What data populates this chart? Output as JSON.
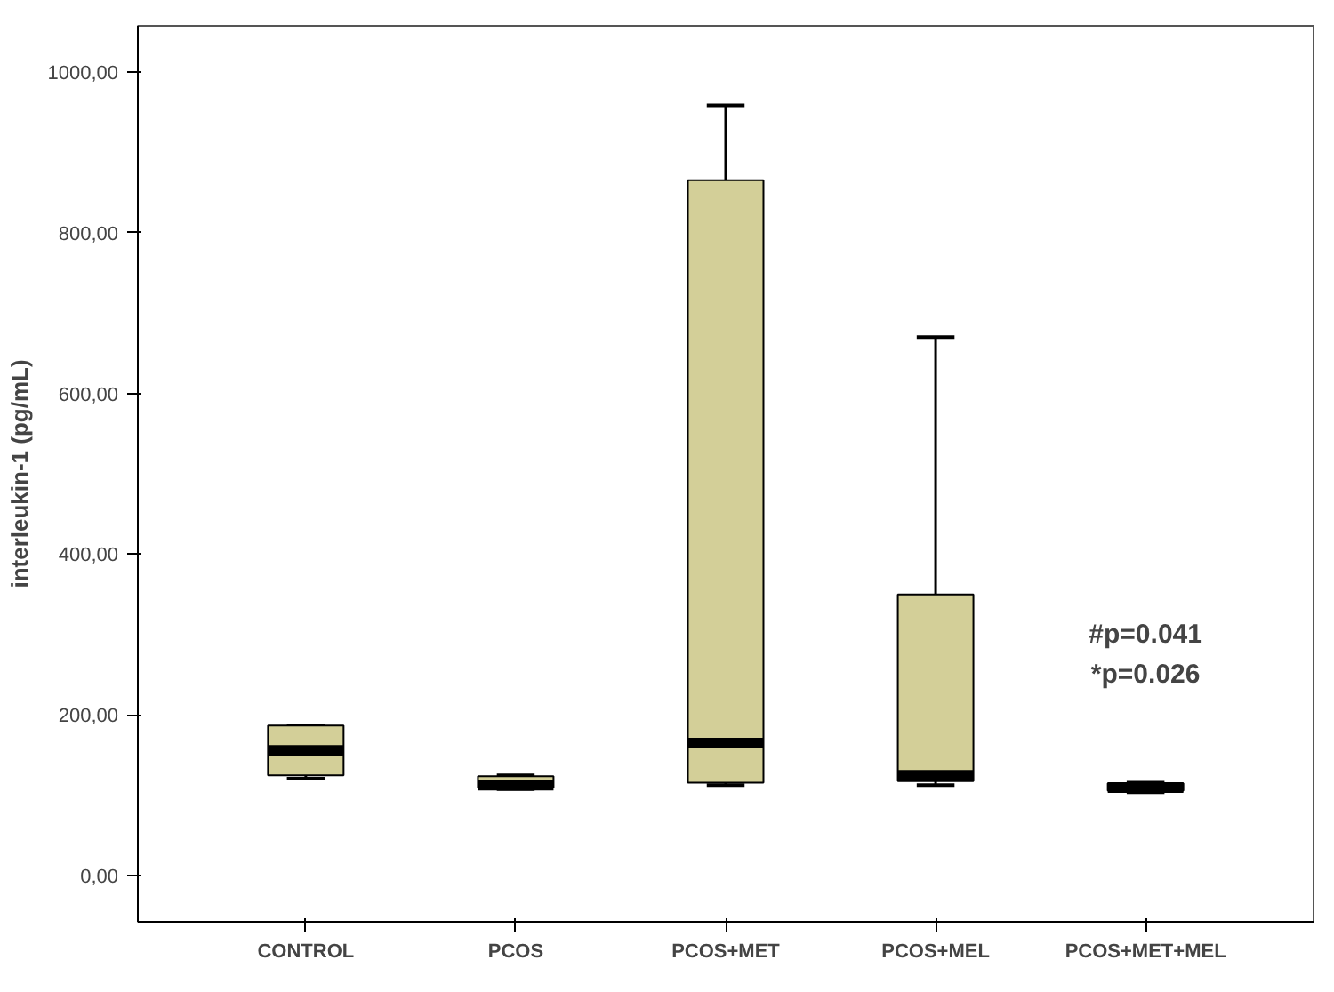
{
  "chart_data": {
    "type": "box",
    "ylabel": "interleukin-1 (pg/mL)",
    "categories": [
      "CONTROL",
      "PCOS",
      "PCOS+MET",
      "PCOS+MEL",
      "PCOS+MET+MEL"
    ],
    "boxes": [
      {
        "low": 121,
        "q1": 125,
        "median": 156,
        "q3": 187,
        "high": 187
      },
      {
        "low": 108,
        "q1": 110,
        "median": 113,
        "q3": 124,
        "high": 125
      },
      {
        "low": 113,
        "q1": 116,
        "median": 165,
        "q3": 865,
        "high": 958
      },
      {
        "low": 113,
        "q1": 118,
        "median": 125,
        "q3": 350,
        "high": 670
      },
      {
        "low": 104,
        "q1": 106,
        "median": 110,
        "q3": 115,
        "high": 116
      }
    ],
    "color": "#d3cf98",
    "ylim": [
      -57,
      1057
    ],
    "yticks": [
      {
        "value": 0,
        "label": "0,00"
      },
      {
        "value": 200,
        "label": "200,00"
      },
      {
        "value": 400,
        "label": "400,00"
      },
      {
        "value": 600,
        "label": "600,00"
      },
      {
        "value": 800,
        "label": "800,00"
      },
      {
        "value": 1000,
        "label": "1000,00"
      }
    ],
    "annotations": [
      "#p=0.041",
      "*p=0.026"
    ],
    "grid": false
  }
}
